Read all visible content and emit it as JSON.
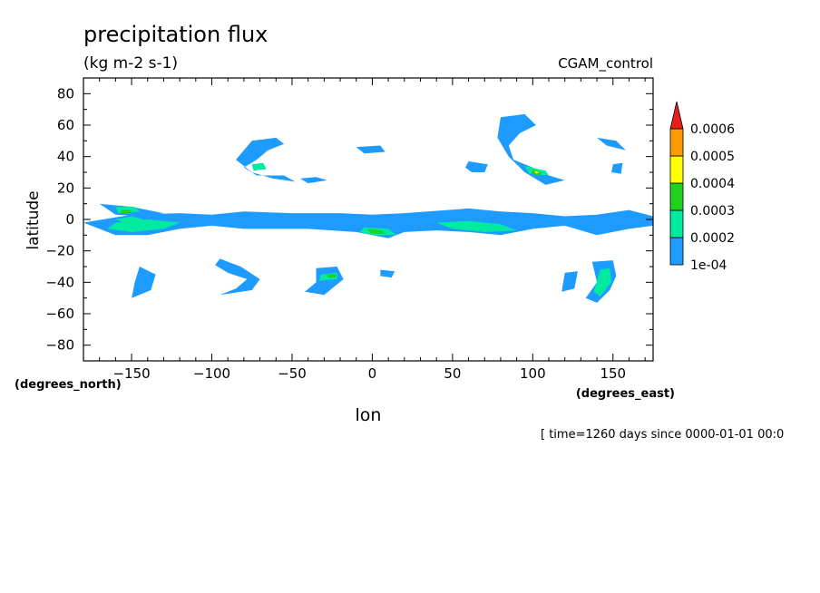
{
  "chart_data": {
    "type": "heatmap",
    "title": "precipitation flux",
    "units": "(kg m-2 s-1)",
    "dataset": "CGAM_control",
    "xlabel": "lon",
    "ylabel": "latitude",
    "x_units": "(degrees_east)",
    "y_units": "(degrees_north)",
    "time_label": "[ time=1260 days since 0000-01-01 00:0",
    "xlim": [
      -180,
      175
    ],
    "ylim": [
      -90,
      90
    ],
    "x_ticks": [
      -150,
      -100,
      -50,
      0,
      50,
      100,
      150
    ],
    "y_ticks": [
      80,
      60,
      40,
      20,
      0,
      -20,
      -40,
      -60,
      -80
    ],
    "colorbar": {
      "levels": [
        "1e-04",
        "0.0002",
        "0.0003",
        "0.0004",
        "0.0005",
        "0.0006"
      ],
      "colors": [
        "#1e9bff",
        "#00eba0",
        "#1ed21e",
        "#ffff00",
        "#ff9b00",
        "#e61e1e"
      ]
    },
    "contour_regions": [
      {
        "level": 1,
        "points": [
          [
            -180,
            -2
          ],
          [
            -150,
            3
          ],
          [
            -120,
            4
          ],
          [
            -100,
            3
          ],
          [
            -80,
            5
          ],
          [
            -50,
            4
          ],
          [
            -20,
            4
          ],
          [
            0,
            3
          ],
          [
            20,
            4
          ],
          [
            60,
            7
          ],
          [
            80,
            5
          ],
          [
            100,
            4
          ],
          [
            120,
            2
          ],
          [
            140,
            3
          ],
          [
            160,
            6
          ],
          [
            175,
            2
          ],
          [
            175,
            -4
          ],
          [
            160,
            -6
          ],
          [
            140,
            -10
          ],
          [
            120,
            -4
          ],
          [
            100,
            -6
          ],
          [
            80,
            -10
          ],
          [
            60,
            -8
          ],
          [
            40,
            -7
          ],
          [
            20,
            -8
          ],
          [
            10,
            -12
          ],
          [
            -10,
            -8
          ],
          [
            -40,
            -6
          ],
          [
            -80,
            -6
          ],
          [
            -100,
            -4
          ],
          [
            -120,
            -6
          ],
          [
            -140,
            -10
          ],
          [
            -160,
            -10
          ],
          [
            -170,
            -6
          ]
        ]
      },
      {
        "level": 1,
        "points": [
          [
            -170,
            10
          ],
          [
            -150,
            8
          ],
          [
            -130,
            4
          ],
          [
            -140,
            2
          ],
          [
            -160,
            3
          ]
        ]
      },
      {
        "level": 1,
        "points": [
          [
            -75,
            50
          ],
          [
            -60,
            52
          ],
          [
            -55,
            48
          ],
          [
            -65,
            44
          ],
          [
            -72,
            38
          ],
          [
            -80,
            33
          ],
          [
            -72,
            28
          ],
          [
            -55,
            28
          ],
          [
            -48,
            24
          ],
          [
            -62,
            26
          ],
          [
            -75,
            30
          ],
          [
            -85,
            38
          ]
        ]
      },
      {
        "level": 1,
        "points": [
          [
            -45,
            26
          ],
          [
            -35,
            27
          ],
          [
            -28,
            25
          ],
          [
            -40,
            23
          ]
        ]
      },
      {
        "level": 1,
        "points": [
          [
            -10,
            46
          ],
          [
            5,
            47
          ],
          [
            8,
            43
          ],
          [
            -5,
            42
          ]
        ]
      },
      {
        "level": 1,
        "points": [
          [
            80,
            65
          ],
          [
            95,
            67
          ],
          [
            102,
            60
          ],
          [
            92,
            55
          ],
          [
            85,
            47
          ],
          [
            88,
            38
          ],
          [
            100,
            33
          ],
          [
            110,
            28
          ],
          [
            120,
            25
          ],
          [
            108,
            22
          ],
          [
            95,
            30
          ],
          [
            85,
            40
          ],
          [
            78,
            52
          ]
        ]
      },
      {
        "level": 1,
        "points": [
          [
            140,
            52
          ],
          [
            152,
            50
          ],
          [
            158,
            44
          ],
          [
            146,
            47
          ]
        ]
      },
      {
        "level": 1,
        "points": [
          [
            150,
            35
          ],
          [
            156,
            36
          ],
          [
            155,
            29
          ],
          [
            149,
            30
          ]
        ]
      },
      {
        "level": 1,
        "points": [
          [
            60,
            37
          ],
          [
            72,
            35
          ],
          [
            70,
            30
          ],
          [
            62,
            30
          ],
          [
            58,
            33
          ]
        ]
      },
      {
        "level": 1,
        "points": [
          [
            -95,
            -25
          ],
          [
            -82,
            -30
          ],
          [
            -70,
            -38
          ],
          [
            -75,
            -45
          ],
          [
            -95,
            -48
          ],
          [
            -85,
            -44
          ],
          [
            -78,
            -38
          ],
          [
            -90,
            -34
          ],
          [
            -98,
            -29
          ]
        ]
      },
      {
        "level": 1,
        "points": [
          [
            -35,
            -31
          ],
          [
            -22,
            -30
          ],
          [
            -18,
            -38
          ],
          [
            -30,
            -48
          ],
          [
            -42,
            -46
          ],
          [
            -35,
            -40
          ]
        ]
      },
      {
        "level": 1,
        "points": [
          [
            -145,
            -30
          ],
          [
            -135,
            -35
          ],
          [
            -138,
            -45
          ],
          [
            -150,
            -50
          ],
          [
            -148,
            -40
          ]
        ]
      },
      {
        "level": 1,
        "points": [
          [
            137,
            -27
          ],
          [
            150,
            -26
          ],
          [
            152,
            -36
          ],
          [
            148,
            -45
          ],
          [
            140,
            -53
          ],
          [
            133,
            -50
          ],
          [
            140,
            -40
          ]
        ]
      },
      {
        "level": 1,
        "points": [
          [
            5,
            -32
          ],
          [
            14,
            -33
          ],
          [
            12,
            -37
          ],
          [
            5,
            -36
          ]
        ]
      },
      {
        "level": 1,
        "points": [
          [
            120,
            -34
          ],
          [
            128,
            -33
          ],
          [
            126,
            -44
          ],
          [
            118,
            -46
          ]
        ]
      },
      {
        "level": 2,
        "points": [
          [
            -160,
            -2
          ],
          [
            -140,
            0
          ],
          [
            -120,
            -2
          ],
          [
            -130,
            -6
          ],
          [
            -150,
            -8
          ],
          [
            -165,
            -6
          ]
        ]
      },
      {
        "level": 2,
        "points": [
          [
            -160,
            8
          ],
          [
            -148,
            8
          ],
          [
            -145,
            5
          ],
          [
            -158,
            4
          ]
        ]
      },
      {
        "level": 2,
        "points": [
          [
            -5,
            -5
          ],
          [
            10,
            -6
          ],
          [
            15,
            -10
          ],
          [
            0,
            -10
          ],
          [
            -8,
            -8
          ]
        ]
      },
      {
        "level": 2,
        "points": [
          [
            40,
            -2
          ],
          [
            60,
            -1
          ],
          [
            80,
            -3
          ],
          [
            90,
            -7
          ],
          [
            70,
            -8
          ],
          [
            50,
            -6
          ]
        ]
      },
      {
        "level": 2,
        "points": [
          [
            95,
            34
          ],
          [
            108,
            31
          ],
          [
            110,
            28
          ],
          [
            98,
            29
          ]
        ]
      },
      {
        "level": 2,
        "points": [
          [
            -75,
            35
          ],
          [
            -68,
            36
          ],
          [
            -66,
            32
          ],
          [
            -74,
            31
          ]
        ]
      },
      {
        "level": 2,
        "points": [
          [
            -32,
            -35
          ],
          [
            -22,
            -34
          ],
          [
            -22,
            -38
          ],
          [
            -33,
            -39
          ]
        ]
      },
      {
        "level": 2,
        "points": [
          [
            142,
            -32
          ],
          [
            148,
            -31
          ],
          [
            149,
            -40
          ],
          [
            142,
            -49
          ],
          [
            138,
            -46
          ]
        ]
      },
      {
        "level": 2,
        "points": [
          [
            -160,
            0
          ],
          [
            -150,
            2
          ],
          [
            -140,
            -1
          ],
          [
            -150,
            -4
          ]
        ]
      },
      {
        "level": 3,
        "points": [
          [
            -3,
            -6
          ],
          [
            6,
            -7
          ],
          [
            8,
            -9
          ],
          [
            -1,
            -9
          ]
        ]
      },
      {
        "level": 3,
        "points": [
          [
            100,
            32
          ],
          [
            106,
            30
          ],
          [
            104,
            28
          ],
          [
            99,
            29
          ]
        ]
      },
      {
        "level": 3,
        "points": [
          [
            -28,
            -35
          ],
          [
            -22,
            -35
          ],
          [
            -23,
            -37
          ],
          [
            -28,
            -37
          ]
        ]
      },
      {
        "level": 3,
        "points": [
          [
            -156,
            6
          ],
          [
            -150,
            6
          ],
          [
            -151,
            4
          ],
          [
            -157,
            4
          ]
        ]
      },
      {
        "level": 4,
        "points": [
          [
            101,
            31
          ],
          [
            104,
            30
          ],
          [
            102,
            29
          ]
        ]
      }
    ]
  }
}
